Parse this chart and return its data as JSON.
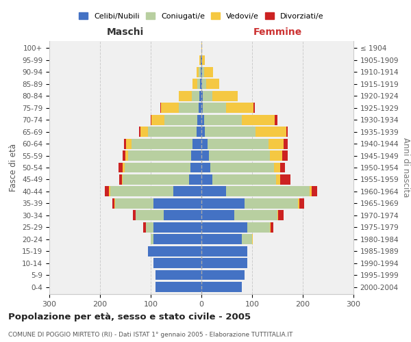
{
  "age_groups": [
    "0-4",
    "5-9",
    "10-14",
    "15-19",
    "20-24",
    "25-29",
    "30-34",
    "35-39",
    "40-44",
    "45-49",
    "50-54",
    "55-59",
    "60-64",
    "65-69",
    "70-74",
    "75-79",
    "80-84",
    "85-89",
    "90-94",
    "95-99",
    "100+"
  ],
  "birth_years": [
    "2000-2004",
    "1995-1999",
    "1990-1994",
    "1985-1989",
    "1980-1984",
    "1975-1979",
    "1970-1974",
    "1965-1969",
    "1960-1964",
    "1955-1959",
    "1950-1954",
    "1945-1949",
    "1940-1944",
    "1935-1939",
    "1930-1934",
    "1925-1929",
    "1920-1924",
    "1915-1919",
    "1910-1914",
    "1905-1909",
    "≤ 1904"
  ],
  "colors": {
    "celibi": "#4472c4",
    "coniugati": "#b8cfa0",
    "vedovi": "#f5c842",
    "divorziati": "#cc2222"
  },
  "males": {
    "celibi": [
      90,
      90,
      95,
      105,
      95,
      95,
      75,
      95,
      55,
      25,
      22,
      20,
      18,
      10,
      8,
      5,
      4,
      3,
      2,
      1,
      0
    ],
    "coniugati": [
      0,
      0,
      0,
      0,
      5,
      15,
      55,
      75,
      125,
      130,
      130,
      125,
      120,
      95,
      65,
      40,
      15,
      5,
      3,
      1,
      0
    ],
    "vedovi": [
      0,
      0,
      0,
      0,
      0,
      0,
      0,
      1,
      2,
      2,
      3,
      5,
      10,
      15,
      25,
      35,
      25,
      10,
      5,
      2,
      0
    ],
    "divorziati": [
      0,
      0,
      0,
      0,
      0,
      5,
      5,
      5,
      8,
      5,
      8,
      5,
      5,
      3,
      2,
      1,
      0,
      0,
      0,
      0,
      0
    ]
  },
  "females": {
    "celibi": [
      80,
      85,
      90,
      90,
      80,
      90,
      65,
      85,
      48,
      22,
      18,
      15,
      12,
      7,
      5,
      3,
      3,
      2,
      2,
      1,
      0
    ],
    "coniugati": [
      0,
      0,
      0,
      0,
      20,
      45,
      85,
      105,
      165,
      125,
      125,
      120,
      120,
      100,
      75,
      45,
      18,
      8,
      3,
      1,
      0
    ],
    "vedovi": [
      0,
      0,
      0,
      0,
      2,
      2,
      2,
      3,
      5,
      8,
      12,
      25,
      30,
      60,
      65,
      55,
      50,
      25,
      18,
      5,
      1
    ],
    "divorziati": [
      0,
      0,
      0,
      0,
      0,
      5,
      10,
      10,
      10,
      20,
      10,
      10,
      8,
      3,
      5,
      2,
      0,
      0,
      0,
      0,
      0
    ]
  },
  "xlim": 300,
  "title": "Popolazione per età, sesso e stato civile - 2005",
  "subtitle": "COMUNE DI POGGIO MIRTETO (RI) - Dati ISTAT 1° gennaio 2005 - Elaborazione TUTTITALIA.IT",
  "ylabel_left": "Fasce di età",
  "ylabel_right": "Anni di nascita",
  "xlabel_left": "Maschi",
  "xlabel_right": "Femmine",
  "background_color": "#f0f0f0"
}
